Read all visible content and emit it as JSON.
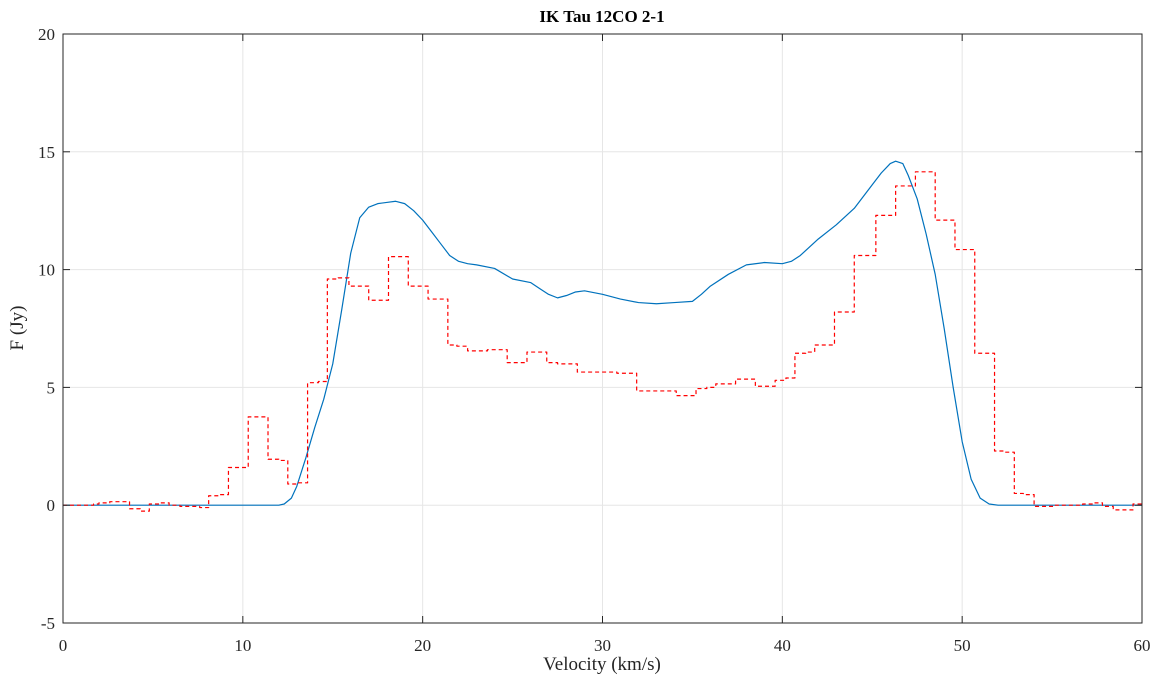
{
  "chart_data": {
    "type": "line",
    "title": "IK Tau 12CO 2-1",
    "xlabel": "Velocity (km/s)",
    "ylabel": "F (Jy)",
    "xlim": [
      0,
      60
    ],
    "ylim": [
      -5,
      20
    ],
    "xticks": [
      0,
      10,
      20,
      30,
      40,
      50,
      60
    ],
    "yticks": [
      -5,
      0,
      5,
      10,
      15,
      20
    ],
    "grid": true,
    "legend": "none",
    "series": [
      {
        "color": "#0072BD",
        "style": "solid",
        "x": [
          0,
          5,
          10,
          12.0,
          12.3,
          12.7,
          13.0,
          13.5,
          14.0,
          14.5,
          15.0,
          15.5,
          16.0,
          16.5,
          17.0,
          17.5,
          18.0,
          18.5,
          19.0,
          19.5,
          20.0,
          20.5,
          21.0,
          21.5,
          22.0,
          22.5,
          23.0,
          24.0,
          25.0,
          26.0,
          26.5,
          27.0,
          27.5,
          28.0,
          28.5,
          29.0,
          30.0,
          31.0,
          32.0,
          33.0,
          34.0,
          35.0,
          35.5,
          36.0,
          37.0,
          38.0,
          39.0,
          40.0,
          40.5,
          41.0,
          42.0,
          43.0,
          44.0,
          45.0,
          45.5,
          46.0,
          46.3,
          46.7,
          47.0,
          47.5,
          48.0,
          48.5,
          49.0,
          49.5,
          50.0,
          50.5,
          51.0,
          51.5,
          52.0,
          52.5,
          55,
          60
        ],
        "y": [
          0,
          0,
          0,
          0.0,
          0.05,
          0.3,
          0.8,
          2.0,
          3.3,
          4.5,
          6.0,
          8.3,
          10.7,
          12.2,
          12.65,
          12.8,
          12.85,
          12.9,
          12.8,
          12.5,
          12.1,
          11.6,
          11.1,
          10.6,
          10.35,
          10.25,
          10.2,
          10.05,
          9.6,
          9.45,
          9.2,
          8.95,
          8.8,
          8.9,
          9.05,
          9.1,
          8.95,
          8.75,
          8.6,
          8.55,
          8.6,
          8.65,
          8.95,
          9.3,
          9.8,
          10.2,
          10.3,
          10.25,
          10.35,
          10.6,
          11.3,
          11.9,
          12.6,
          13.6,
          14.1,
          14.5,
          14.6,
          14.5,
          14.0,
          13.0,
          11.5,
          9.8,
          7.5,
          5.0,
          2.7,
          1.1,
          0.3,
          0.05,
          0,
          0,
          0,
          0
        ]
      },
      {
        "color": "#FF0000",
        "style": "dashed-step",
        "x": [
          0,
          1.7,
          2.0,
          2.6,
          3.2,
          3.7,
          4.3,
          4.8,
          5.4,
          5.9,
          6.5,
          7.0,
          7.6,
          8.1,
          8.7,
          9.2,
          9.8,
          10.3,
          10.9,
          11.4,
          12.0,
          12.5,
          13.1,
          13.6,
          14.2,
          14.7,
          15.3,
          15.9,
          16.4,
          17.0,
          17.5,
          18.1,
          18.6,
          19.2,
          19.7,
          20.3,
          20.8,
          21.4,
          21.9,
          22.5,
          23.0,
          23.6,
          24.1,
          24.7,
          25.3,
          25.8,
          26.4,
          26.9,
          27.5,
          28.0,
          28.6,
          29.1,
          29.7,
          30.2,
          30.8,
          31.3,
          31.9,
          32.4,
          33.0,
          33.5,
          34.1,
          34.6,
          35.2,
          35.8,
          36.3,
          36.9,
          37.4,
          38.0,
          38.5,
          39.1,
          39.6,
          40.2,
          40.7,
          41.3,
          41.8,
          42.4,
          42.9,
          43.5,
          44.0,
          44.6,
          45.2,
          45.7,
          46.3,
          46.8,
          47.4,
          47.9,
          48.5,
          49.0,
          49.6,
          50.1,
          50.7,
          51.2,
          51.8,
          52.3,
          52.9,
          53.4,
          54.0,
          54.5,
          55.1,
          55.6,
          56.2,
          56.7,
          57.3,
          57.8,
          58.4,
          58.9,
          59.5,
          60
        ],
        "y": [
          0,
          0.05,
          0.1,
          0.15,
          0.15,
          -0.15,
          -0.25,
          0.05,
          0.1,
          0,
          -0.05,
          -0.05,
          -0.1,
          0.4,
          0.45,
          1.6,
          1.6,
          3.75,
          3.75,
          1.95,
          1.9,
          0.9,
          0.95,
          5.2,
          5.25,
          9.6,
          9.65,
          9.3,
          9.3,
          8.7,
          8.7,
          10.55,
          10.55,
          9.3,
          9.3,
          8.75,
          8.75,
          6.8,
          6.75,
          6.55,
          6.55,
          6.6,
          6.6,
          6.05,
          6.05,
          6.5,
          6.5,
          6.05,
          6.0,
          6.0,
          5.65,
          5.65,
          5.65,
          5.65,
          5.6,
          5.6,
          4.85,
          4.85,
          4.85,
          4.85,
          4.65,
          4.65,
          4.95,
          5.0,
          5.15,
          5.15,
          5.35,
          5.35,
          5.05,
          5.05,
          5.3,
          5.4,
          6.45,
          6.5,
          6.8,
          6.8,
          8.2,
          8.2,
          10.6,
          10.6,
          12.3,
          12.3,
          13.55,
          13.55,
          14.15,
          14.15,
          12.1,
          12.1,
          10.85,
          10.85,
          6.45,
          6.45,
          2.3,
          2.25,
          0.5,
          0.45,
          -0.05,
          -0.05,
          0,
          0,
          0,
          0.05,
          0.1,
          -0.05,
          -0.2,
          -0.2,
          0.05,
          0
        ]
      }
    ]
  }
}
